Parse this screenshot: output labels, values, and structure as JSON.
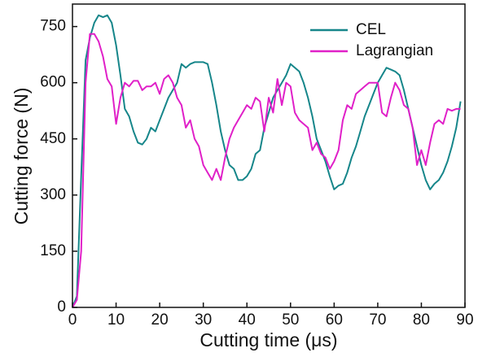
{
  "chart_data": {
    "type": "line",
    "xlabel": "Cutting time (μs)",
    "ylabel": "Cutting force (N)",
    "x": [
      0,
      1,
      2,
      3,
      4,
      5,
      6,
      7,
      8,
      9,
      10,
      11,
      12,
      13,
      14,
      15,
      16,
      17,
      18,
      19,
      20,
      21,
      22,
      23,
      24,
      25,
      26,
      27,
      28,
      29,
      30,
      31,
      32,
      33,
      34,
      35,
      36,
      37,
      38,
      39,
      40,
      41,
      42,
      43,
      44,
      45,
      46,
      47,
      48,
      49,
      50,
      51,
      52,
      53,
      54,
      55,
      56,
      57,
      58,
      59,
      60,
      61,
      62,
      63,
      64,
      65,
      66,
      67,
      68,
      69,
      70,
      71,
      72,
      73,
      74,
      75,
      76,
      77,
      78,
      79,
      80,
      81,
      82,
      83,
      84,
      85,
      86,
      87,
      88,
      89
    ],
    "series": [
      {
        "name": "CEL",
        "color": "#16868a",
        "values": [
          0,
          30,
          350,
          660,
          720,
          760,
          780,
          775,
          780,
          760,
          700,
          620,
          530,
          510,
          470,
          440,
          435,
          450,
          480,
          470,
          500,
          530,
          560,
          580,
          600,
          650,
          640,
          650,
          655,
          655,
          655,
          650,
          600,
          540,
          470,
          420,
          380,
          370,
          340,
          340,
          350,
          370,
          410,
          420,
          480,
          520,
          560,
          580,
          600,
          620,
          650,
          640,
          630,
          600,
          560,
          510,
          450,
          420,
          390,
          350,
          315,
          325,
          330,
          360,
          400,
          430,
          470,
          510,
          540,
          570,
          600,
          620,
          640,
          635,
          630,
          620,
          580,
          530,
          480,
          430,
          380,
          340,
          315,
          330,
          340,
          360,
          390,
          430,
          480,
          550
        ]
      },
      {
        "name": "Lagrangian",
        "color": "#e020c8",
        "values": [
          0,
          20,
          150,
          600,
          730,
          730,
          710,
          670,
          610,
          590,
          490,
          560,
          600,
          590,
          605,
          605,
          580,
          590,
          590,
          600,
          570,
          610,
          620,
          600,
          560,
          540,
          480,
          500,
          450,
          430,
          380,
          360,
          340,
          370,
          340,
          400,
          450,
          480,
          500,
          520,
          540,
          530,
          560,
          550,
          470,
          560,
          520,
          610,
          540,
          600,
          590,
          520,
          500,
          490,
          480,
          420,
          440,
          410,
          400,
          370,
          390,
          420,
          500,
          540,
          530,
          570,
          580,
          590,
          600,
          600,
          600,
          520,
          510,
          560,
          600,
          580,
          540,
          530,
          480,
          380,
          420,
          380,
          440,
          490,
          500,
          490,
          530,
          525,
          530,
          530
        ]
      }
    ],
    "xlim": [
      0,
      90
    ],
    "xticks": [
      0,
      10,
      20,
      30,
      40,
      50,
      60,
      70,
      80,
      90
    ],
    "ylim": [
      0,
      810
    ],
    "yticks": [
      0,
      150,
      300,
      450,
      600,
      750
    ],
    "legend": "upper right"
  }
}
